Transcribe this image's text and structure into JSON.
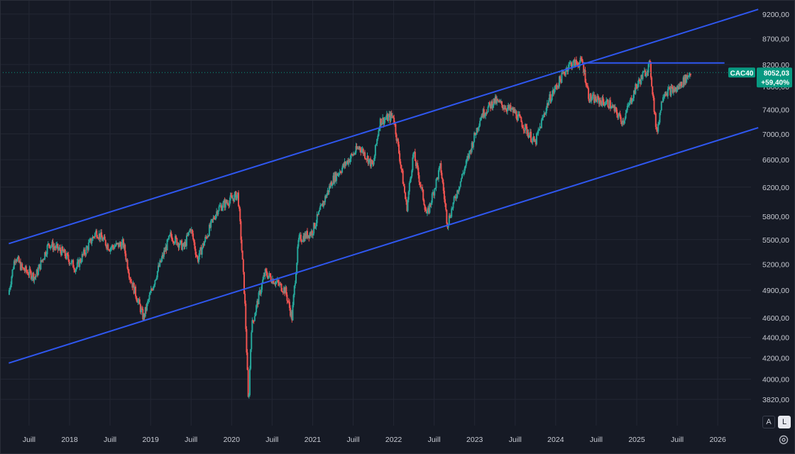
{
  "chart_data": {
    "type": "candlestick",
    "symbol": "CAC40",
    "last_price": "8052,03",
    "change_percent": "+59,40%",
    "y_scale": "log",
    "y_ticks": [
      "9200,00",
      "8700,00",
      "8200,00",
      "7800,00",
      "7400,00",
      "7000,00",
      "6600,00",
      "6200,00",
      "5800,00",
      "5500,00",
      "5200,00",
      "4900,00",
      "4600,00",
      "4400,00",
      "4200,00",
      "4000,00",
      "3820,00"
    ],
    "x_ticks": [
      "Juill",
      "2018",
      "Juill",
      "2019",
      "Juill",
      "2020",
      "Juill",
      "2021",
      "Juill",
      "2022",
      "Juill",
      "2023",
      "Juill",
      "2024",
      "Juill",
      "2025",
      "Juill",
      "2026"
    ],
    "colors": {
      "up": "#26a69a",
      "down": "#ef5350",
      "channel": "#2f57f0",
      "badge": "#089981",
      "background": "#161a25"
    },
    "price_path": [
      [
        "2017-04",
        4850
      ],
      [
        "2017-05",
        5300
      ],
      [
        "2017-06",
        5150
      ],
      [
        "2017-08",
        5050
      ],
      [
        "2017-10",
        5450
      ],
      [
        "2017-12",
        5350
      ],
      [
        "2018-02",
        5150
      ],
      [
        "2018-05",
        5600
      ],
      [
        "2018-07",
        5400
      ],
      [
        "2018-09",
        5450
      ],
      [
        "2018-10",
        5050
      ],
      [
        "2018-12",
        4600
      ],
      [
        "2019-02",
        5100
      ],
      [
        "2019-04",
        5550
      ],
      [
        "2019-06",
        5400
      ],
      [
        "2019-07",
        5650
      ],
      [
        "2019-08",
        5250
      ],
      [
        "2019-11",
        5900
      ],
      [
        "2020-02",
        6100
      ],
      [
        "2020-03",
        4800
      ],
      [
        "2020-03-18",
        3750
      ],
      [
        "2020-04",
        4500
      ],
      [
        "2020-06",
        5100
      ],
      [
        "2020-09",
        4900
      ],
      [
        "2020-10",
        4600
      ],
      [
        "2020-11",
        5500
      ],
      [
        "2021-01",
        5600
      ],
      [
        "2021-04",
        6300
      ],
      [
        "2021-08",
        6800
      ],
      [
        "2021-10",
        6500
      ],
      [
        "2021-11",
        7200
      ],
      [
        "2022-01",
        7300
      ],
      [
        "2022-03",
        5900
      ],
      [
        "2022-04",
        6700
      ],
      [
        "2022-06",
        5800
      ],
      [
        "2022-08",
        6500
      ],
      [
        "2022-09",
        5700
      ],
      [
        "2022-12",
        6600
      ],
      [
        "2023-02",
        7300
      ],
      [
        "2023-04",
        7550
      ],
      [
        "2023-07",
        7350
      ],
      [
        "2023-10",
        6850
      ],
      [
        "2023-12",
        7550
      ],
      [
        "2024-03",
        8200
      ],
      [
        "2024-05",
        8250
      ],
      [
        "2024-06",
        7600
      ],
      [
        "2024-09",
        7500
      ],
      [
        "2024-11",
        7200
      ],
      [
        "2025-01",
        7800
      ],
      [
        "2025-03",
        8200
      ],
      [
        "2025-04",
        7000
      ],
      [
        "2025-05",
        7700
      ],
      [
        "2025-07",
        7750
      ],
      [
        "2025-08",
        7900
      ],
      [
        "2025-09",
        8052
      ]
    ],
    "channel_upper": [
      [
        "2017-04",
        5450
      ],
      [
        "2026-07",
        9300
      ]
    ],
    "channel_lower": [
      [
        "2017-04",
        4150
      ],
      [
        "2026-07",
        7100
      ]
    ],
    "resistance": {
      "from": "2024-05",
      "to": "2026-02",
      "value": 8230
    }
  },
  "ui": {
    "auto_scale_label": "A",
    "log_scale_label": "L",
    "settings_icon": "gear-icon"
  }
}
